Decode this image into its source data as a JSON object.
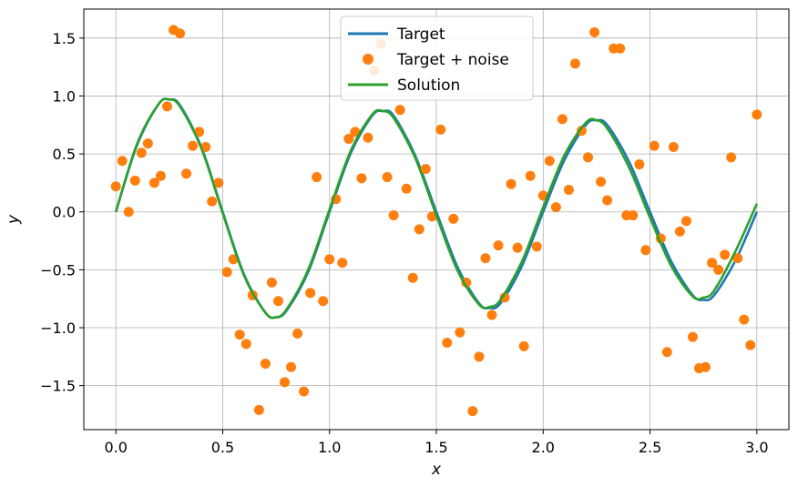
{
  "chart_data": {
    "type": "line",
    "xlabel": "x",
    "ylabel": "y",
    "xlim": [
      -0.15,
      3.15
    ],
    "ylim": [
      -1.88,
      1.75
    ],
    "grid": true,
    "legend_position": "top-center",
    "x_ticks": [
      0.0,
      0.5,
      1.0,
      1.5,
      2.0,
      2.5,
      3.0
    ],
    "x_tick_labels": [
      "0.0",
      "0.5",
      "1.0",
      "1.5",
      "2.0",
      "2.5",
      "3.0"
    ],
    "y_ticks": [
      -1.5,
      -1.0,
      -0.5,
      0.0,
      0.5,
      1.0,
      1.5
    ],
    "y_tick_labels": [
      "−1.5",
      "−1.0",
      "−0.5",
      "0.0",
      "0.5",
      "1.0",
      "1.5"
    ],
    "colors": {
      "target": "#1f77b4",
      "noise": "#ff7f0e",
      "solution": "#2ca02c",
      "grid": "#b0b0b0"
    },
    "series": [
      {
        "name": "Target",
        "kind": "line",
        "x": [
          0,
          0.1,
          0.2,
          0.25,
          0.3,
          0.4,
          0.5,
          0.6,
          0.7,
          0.75,
          0.8,
          0.9,
          1.0,
          1.1,
          1.2,
          1.25,
          1.3,
          1.4,
          1.5,
          1.6,
          1.7,
          1.75,
          1.8,
          1.9,
          2.0,
          2.1,
          2.2,
          2.25,
          2.3,
          2.4,
          2.5,
          2.6,
          2.7,
          2.75,
          2.8,
          2.9,
          3.0
        ],
        "y": [
          0.0,
          0.58,
          0.93,
          0.97,
          0.92,
          0.56,
          0.0,
          -0.54,
          -0.87,
          -0.91,
          -0.85,
          -0.52,
          0.0,
          0.51,
          0.83,
          0.87,
          0.83,
          0.49,
          0.0,
          -0.48,
          -0.79,
          -0.83,
          -0.79,
          -0.47,
          0.0,
          0.45,
          0.75,
          0.79,
          0.75,
          0.44,
          0.0,
          -0.43,
          -0.72,
          -0.76,
          -0.72,
          -0.42,
          0.0
        ]
      },
      {
        "name": "Target + noise",
        "kind": "scatter",
        "x": [
          0.0,
          0.03,
          0.06,
          0.09,
          0.12,
          0.15,
          0.18,
          0.21,
          0.24,
          0.27,
          0.3,
          0.33,
          0.36,
          0.39,
          0.42,
          0.45,
          0.48,
          0.52,
          0.55,
          0.58,
          0.61,
          0.64,
          0.67,
          0.7,
          0.73,
          0.76,
          0.79,
          0.82,
          0.85,
          0.88,
          0.91,
          0.94,
          0.97,
          1.0,
          1.03,
          1.06,
          1.09,
          1.12,
          1.15,
          1.18,
          1.21,
          1.24,
          1.27,
          1.3,
          1.33,
          1.36,
          1.39,
          1.42,
          1.45,
          1.48,
          1.52,
          1.55,
          1.58,
          1.61,
          1.64,
          1.67,
          1.7,
          1.73,
          1.76,
          1.79,
          1.82,
          1.85,
          1.88,
          1.91,
          1.94,
          1.97,
          2.0,
          2.03,
          2.06,
          2.09,
          2.12,
          2.15,
          2.18,
          2.21,
          2.24,
          2.27,
          2.3,
          2.33,
          2.36,
          2.39,
          2.42,
          2.45,
          2.48,
          2.52,
          2.55,
          2.58,
          2.61,
          2.64,
          2.67,
          2.7,
          2.73,
          2.76,
          2.79,
          2.82,
          2.85,
          2.88,
          2.91,
          2.94,
          2.97,
          3.0
        ],
        "y": [
          0.22,
          0.44,
          0.0,
          0.27,
          0.51,
          0.59,
          0.25,
          0.31,
          0.91,
          1.57,
          1.54,
          0.33,
          0.57,
          0.69,
          0.56,
          0.09,
          0.25,
          -0.52,
          -0.41,
          -1.06,
          -1.14,
          -0.72,
          -1.71,
          -1.31,
          -0.61,
          -0.77,
          -1.47,
          -1.34,
          -1.05,
          -1.55,
          -0.7,
          0.3,
          -0.77,
          -0.41,
          0.11,
          -0.44,
          0.63,
          0.69,
          0.29,
          0.64,
          1.22,
          1.45,
          0.3,
          -0.03,
          0.88,
          0.2,
          -0.57,
          -0.15,
          0.37,
          -0.04,
          0.71,
          -1.13,
          -0.06,
          -1.04,
          -0.61,
          -1.72,
          -1.25,
          -0.4,
          -0.89,
          -0.29,
          -0.74,
          0.24,
          -0.31,
          -1.16,
          0.31,
          -0.3,
          0.14,
          0.44,
          0.04,
          0.8,
          0.19,
          1.28,
          0.7,
          0.47,
          1.55,
          0.26,
          0.1,
          1.41,
          1.41,
          -0.03,
          -0.03,
          0.41,
          -0.33,
          0.57,
          -0.23,
          -1.21,
          0.56,
          -0.17,
          -0.08,
          -1.08,
          -1.35,
          -1.34,
          -0.44,
          -0.5,
          -0.37,
          0.47,
          -0.4,
          -0.93,
          -1.15,
          0.84
        ]
      },
      {
        "name": "Solution",
        "kind": "line",
        "x": [
          0,
          0.1,
          0.2,
          0.25,
          0.3,
          0.4,
          0.5,
          0.6,
          0.7,
          0.75,
          0.8,
          0.9,
          1.0,
          1.1,
          1.2,
          1.25,
          1.3,
          1.4,
          1.5,
          1.6,
          1.7,
          1.75,
          1.8,
          1.9,
          2.0,
          2.1,
          2.2,
          2.25,
          2.3,
          2.4,
          2.5,
          2.6,
          2.7,
          2.75,
          2.8,
          2.9,
          3.0
        ],
        "y": [
          0.0,
          0.59,
          0.93,
          0.97,
          0.91,
          0.55,
          -0.01,
          -0.55,
          -0.87,
          -0.91,
          -0.84,
          -0.5,
          0.02,
          0.53,
          0.84,
          0.87,
          0.81,
          0.47,
          -0.03,
          -0.51,
          -0.8,
          -0.82,
          -0.76,
          -0.43,
          0.04,
          0.49,
          0.77,
          0.79,
          0.72,
          0.39,
          -0.05,
          -0.47,
          -0.73,
          -0.74,
          -0.68,
          -0.34,
          0.07
        ]
      }
    ]
  }
}
